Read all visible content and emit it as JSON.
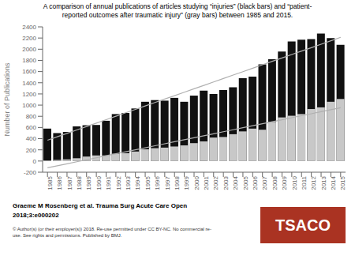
{
  "chart_data": {
    "type": "bar",
    "title": "A comparison of annual publications of articles studying “injuries” (black bars) and “patient-\nreported outcomes after traumatic injury” (gray bars) between 1985 and 2015.",
    "y_label": "Number of Publications",
    "categories": [
      "1985",
      "1986",
      "1987",
      "1988",
      "1989",
      "1990",
      "1991",
      "1992",
      "1993",
      "1994",
      "1995",
      "1996",
      "1997",
      "1998",
      "1999",
      "2000",
      "2001",
      "2002",
      "2003",
      "2004",
      "2005",
      "2006",
      "2007",
      "2008",
      "2009",
      "2010",
      "2011",
      "2012",
      "2013",
      "2014",
      "2015"
    ],
    "series": [
      {
        "type": "bar",
        "color": "#111111",
        "values": [
          580,
          500,
          520,
          620,
          640,
          645,
          720,
          840,
          860,
          940,
          1060,
          1090,
          1080,
          1130,
          1060,
          1170,
          1260,
          1200,
          1270,
          1320,
          1480,
          1510,
          1730,
          1820,
          1960,
          2140,
          2170,
          2180,
          2280,
          2200,
          2080
        ]
      },
      {
        "type": "bar",
        "color": "#c8c8c8",
        "values": [
          10,
          20,
          30,
          50,
          80,
          100,
          100,
          130,
          140,
          170,
          210,
          230,
          240,
          260,
          280,
          320,
          350,
          420,
          430,
          480,
          530,
          580,
          560,
          700,
          780,
          810,
          840,
          930,
          960,
          1060,
          1110
        ]
      },
      {
        "type": "line",
        "color": "#b0b0b0",
        "values": [
          372.02,
          433.35,
          494.69,
          556.03,
          617.37,
          678.71,
          740.05,
          801.39,
          862.73,
          924.06,
          985.4,
          1046.74,
          1108.08,
          1169.42,
          1230.76,
          1292.1,
          1353.44,
          1414.77,
          1476.11,
          1537.45,
          1598.79,
          1660.13,
          1721.47,
          1782.81,
          1844.15,
          1905.48,
          1966.82,
          2028.16,
          2089.5,
          2150.84,
          2212.18
        ]
      },
      {
        "type": "line",
        "color": "#b0b0b0",
        "values": [
          -120.71,
          -84.9,
          -49.08,
          -13.27,
          22.54,
          58.35,
          94.16,
          129.97,
          165.78,
          201.59,
          237.4,
          273.21,
          309.02,
          344.83,
          380.64,
          416.45,
          452.26,
          488.07,
          523.88,
          559.69,
          595.5,
          631.31,
          667.13,
          702.94,
          738.75,
          774.56,
          810.37,
          846.18,
          881.99,
          917.8,
          953.61
        ]
      }
    ],
    "ylim": [
      -200,
      2400
    ],
    "yticks": [
      -200,
      0,
      200,
      400,
      600,
      800,
      1000,
      1200,
      1400,
      1600,
      1800,
      2000,
      2200,
      2400
    ],
    "annotations": [
      {
        "text": "Graeme M Rosenberg et al. Trauma Surg Acute Care Open"
      },
      {
        "text": "2018;3:e000202"
      },
      {
        "text": "© Author(s) (or their employer(s)) 2018. Re-use permitted under CC BY-NC. No commercial re-\nuse. See rights and permissions. Published by BMJ."
      },
      {
        "text": "TSACO",
        "color": "#aa3322"
      }
    ]
  }
}
